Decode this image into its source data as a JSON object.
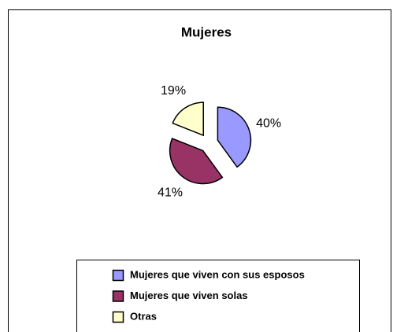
{
  "chart_data": {
    "type": "pie",
    "title": "Mujeres",
    "categories": [
      "Mujeres que viven con sus esposos",
      "Mujeres que viven solas",
      "Otras"
    ],
    "values": [
      40,
      41,
      19
    ],
    "value_labels": [
      "40%",
      "41%",
      "19%"
    ],
    "colors": [
      "#9999ff",
      "#993366",
      "#ffffcc"
    ],
    "exploded": true,
    "legend": "bottom"
  }
}
